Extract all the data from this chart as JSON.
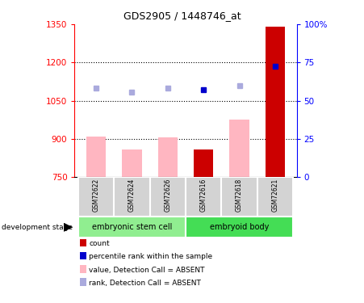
{
  "title": "GDS2905 / 1448746_at",
  "samples": [
    "GSM72622",
    "GSM72624",
    "GSM72626",
    "GSM72616",
    "GSM72618",
    "GSM72621"
  ],
  "group_names": [
    "embryonic stem cell",
    "embryoid body"
  ],
  "group_sizes": [
    3,
    3
  ],
  "group_colors": [
    "#90EE90",
    "#44DD55"
  ],
  "ylim_left": [
    750,
    1350
  ],
  "ylim_right": [
    0,
    100
  ],
  "yticks_left": [
    750,
    900,
    1050,
    1200,
    1350
  ],
  "ytick_labels_left": [
    "750",
    "900",
    "1050",
    "1200",
    "1350"
  ],
  "yticks_right": [
    0,
    25,
    50,
    75,
    100
  ],
  "ytick_labels_right": [
    "0",
    "25",
    "50",
    "75",
    "100%"
  ],
  "value_bars": [
    910,
    860,
    905,
    860,
    975,
    1340
  ],
  "value_absent": [
    true,
    true,
    true,
    false,
    true,
    false
  ],
  "rank_dots": [
    1100,
    1085,
    1100,
    1092,
    1110,
    1185
  ],
  "rank_absent": [
    true,
    true,
    true,
    false,
    true,
    false
  ],
  "bar_color_absent": "#FFB6C1",
  "bar_color_present": "#CC0000",
  "dot_color_absent": "#AAAADD",
  "dot_color_present": "#0000CC",
  "development_label": "development stage",
  "legend_items": [
    {
      "label": "count",
      "color": "#CC0000"
    },
    {
      "label": "percentile rank within the sample",
      "color": "#0000CC"
    },
    {
      "label": "value, Detection Call = ABSENT",
      "color": "#FFB6C1"
    },
    {
      "label": "rank, Detection Call = ABSENT",
      "color": "#AAAADD"
    }
  ],
  "dotted_yticks": [
    900,
    1050,
    1200
  ],
  "base_value": 750
}
